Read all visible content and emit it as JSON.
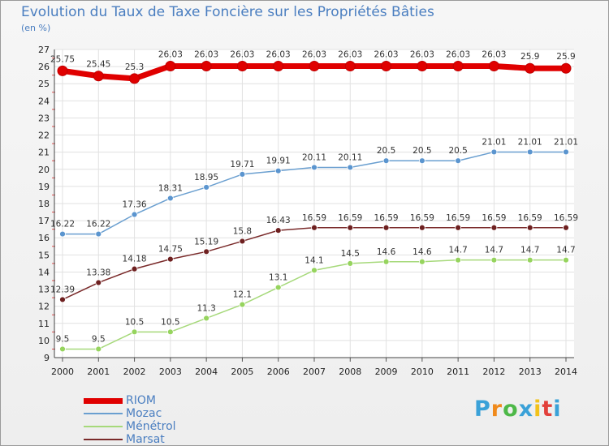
{
  "chart_data": {
    "type": "line",
    "title": "Evolution du Taux de Taxe Foncière sur les Propriétés Bâties",
    "subtitle": "(en %)",
    "ylim": [
      9,
      27
    ],
    "yticks": [
      "9",
      "10",
      "11",
      "12",
      "13",
      "14",
      "15",
      "16",
      "17",
      "18",
      "19",
      "20",
      "21",
      "22",
      "23",
      "24",
      "25",
      "26",
      "27"
    ],
    "categories": [
      "2000",
      "2001",
      "2002",
      "2003",
      "2004",
      "2005",
      "2006",
      "2007",
      "2008",
      "2009",
      "2010",
      "2011",
      "2012",
      "2013",
      "2014"
    ],
    "series": [
      {
        "name": "RIOM",
        "color": "#e00000",
        "fill": "#e00000",
        "width": 7,
        "radius": 6,
        "values": [
          25.75,
          25.45,
          25.3,
          26.03,
          26.03,
          26.03,
          26.03,
          26.03,
          26.03,
          26.03,
          26.03,
          26.03,
          26.03,
          25.9,
          25.9
        ],
        "labels": [
          "25.75",
          "25.45",
          "25.3",
          "26.03",
          "26.03",
          "26.03",
          "26.03",
          "26.03",
          "26.03",
          "26.03",
          "26.03",
          "26.03",
          "26.03",
          "25.9",
          "25.9"
        ]
      },
      {
        "name": "Mozac",
        "color": "#6a9fd0",
        "fill": "#5b95cf",
        "width": 1.5,
        "radius": 3.5,
        "values": [
          16.22,
          16.22,
          17.36,
          18.31,
          18.95,
          19.71,
          19.91,
          20.11,
          20.11,
          20.5,
          20.5,
          20.5,
          21.01,
          21.01,
          21.01
        ],
        "labels": [
          "16.22",
          "16.22",
          "17.36",
          "18.31",
          "18.95",
          "19.71",
          "19.91",
          "20.11",
          "20.11",
          "20.5",
          "20.5",
          "20.5",
          "21.01",
          "21.01",
          "21.01"
        ]
      },
      {
        "name": "Ménétrol",
        "color": "#a6d97a",
        "fill": "#96d45e",
        "width": 1.5,
        "radius": 3.5,
        "values": [
          9.5,
          9.5,
          10.5,
          10.5,
          11.3,
          12.1,
          13.1,
          14.1,
          14.5,
          14.6,
          14.6,
          14.7,
          14.7,
          14.7,
          14.7
        ],
        "labels": [
          "9.5",
          "9.5",
          "10.5",
          "10.5",
          "11.3",
          "12.1",
          "13.1",
          "14.1",
          "14.5",
          "14.6",
          "14.6",
          "14.7",
          "14.7",
          "14.7",
          "14.7"
        ]
      },
      {
        "name": "Marsat",
        "color": "#7a2a2a",
        "fill": "#6e2020",
        "width": 1.5,
        "radius": 3.5,
        "values": [
          12.39,
          13.38,
          14.18,
          14.75,
          15.19,
          15.8,
          16.43,
          16.59,
          16.59,
          16.59,
          16.59,
          16.59,
          16.59,
          16.59,
          16.59
        ],
        "labels": [
          "12.39",
          "13.38",
          "14.18",
          "14.75",
          "15.19",
          "15.8",
          "16.43",
          "16.59",
          "16.59",
          "16.59",
          "16.59",
          "16.59",
          "16.59",
          "16.59",
          "16.59"
        ]
      }
    ],
    "legend_position": "bottom-left"
  },
  "logo": {
    "letters": [
      "P",
      "r",
      "o",
      "x",
      "i",
      "t",
      "i"
    ],
    "colors": [
      "#3aa1d8",
      "#f08a1c",
      "#4db848",
      "#3aa1d8",
      "#f2c21b",
      "#e2403b",
      "#3aa1d8"
    ]
  }
}
